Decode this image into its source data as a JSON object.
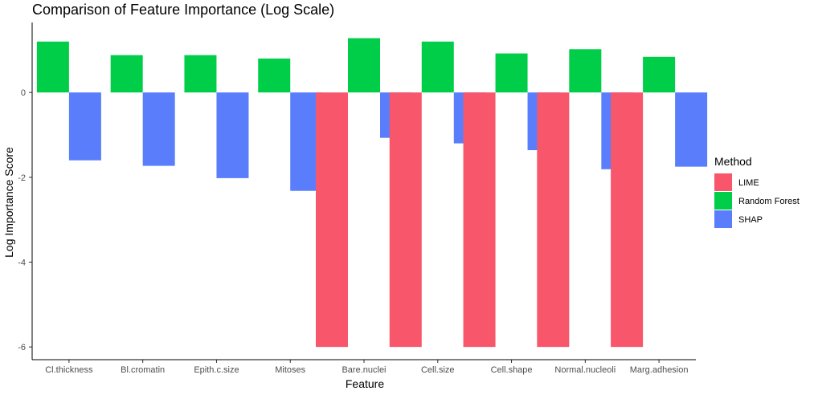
{
  "chart_data": {
    "type": "bar",
    "title": "Comparison of Feature Importance (Log Scale)",
    "xlabel": "Feature",
    "ylabel": "Log Importance Score",
    "ylim": [
      -6.3,
      1.65
    ],
    "yticks": [
      0,
      -2,
      -4,
      -6
    ],
    "ytick_labels": [
      "0",
      "-2",
      "-4",
      "-6"
    ],
    "categories": [
      "Cl.thickness",
      "Bl.cromatin",
      "Epith.c.size",
      "Mitoses",
      "Bare.nuclei",
      "Cell.size",
      "Cell.shape",
      "Normal.nucleoli",
      "Marg.adhesion"
    ],
    "legend": {
      "title": "Method",
      "position": "right"
    },
    "grid": false,
    "series": [
      {
        "name": "LIME",
        "color": "#F8566B",
        "values": [
          null,
          null,
          null,
          null,
          -6.0,
          -6.0,
          -6.0,
          -6.0,
          -6.0
        ]
      },
      {
        "name": "Random Forest",
        "color": "#00CE48",
        "values": [
          1.2,
          0.88,
          0.88,
          0.8,
          1.28,
          1.2,
          0.92,
          1.02,
          0.84
        ]
      },
      {
        "name": "SHAP",
        "color": "#5A7EFB",
        "values": [
          -1.6,
          -1.73,
          -2.02,
          -2.32,
          -1.07,
          -1.2,
          -1.36,
          -1.81,
          -1.75
        ]
      }
    ]
  }
}
